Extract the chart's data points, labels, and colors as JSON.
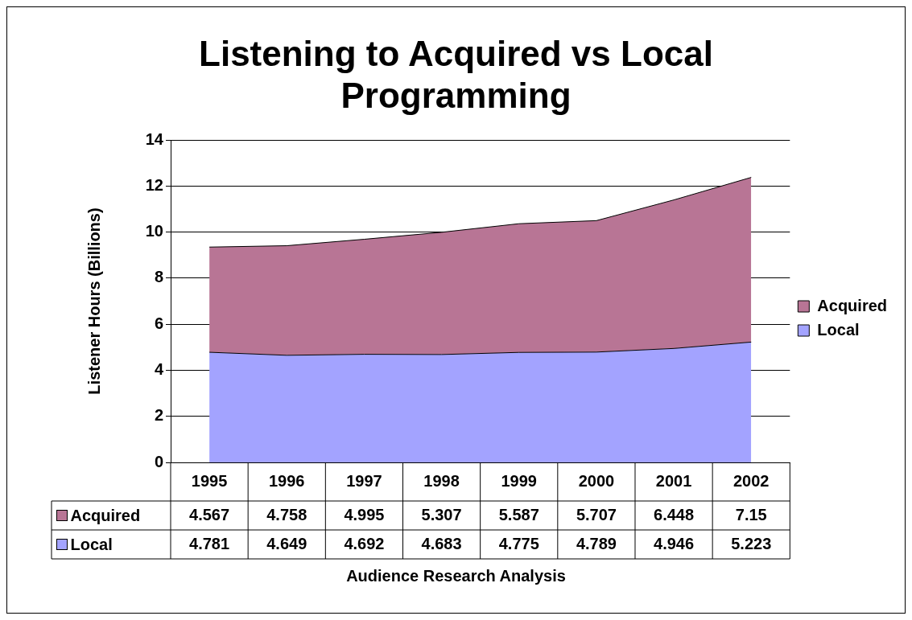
{
  "chart_data": {
    "type": "area",
    "title": "Listening to Acquired vs Local Programming",
    "ylabel": "Listener Hours (Billions)",
    "categories": [
      "1995",
      "1996",
      "1997",
      "1998",
      "1999",
      "2000",
      "2001",
      "2002"
    ],
    "series": [
      {
        "name": "Local",
        "color": "#a3a3ff",
        "values": [
          4.781,
          4.649,
          4.692,
          4.683,
          4.775,
          4.789,
          4.946,
          5.223
        ]
      },
      {
        "name": "Acquired",
        "color": "#b87595",
        "values": [
          4.567,
          4.758,
          4.995,
          5.307,
          5.587,
          5.707,
          6.448,
          7.15
        ]
      }
    ],
    "stacked": true,
    "ylim": [
      0,
      14
    ],
    "yticks": [
      0,
      2,
      4,
      6,
      8,
      10,
      12,
      14
    ],
    "grid": "y",
    "legend": "right",
    "data_labels": true,
    "annotations": [
      "Audience Research Analysis"
    ]
  }
}
